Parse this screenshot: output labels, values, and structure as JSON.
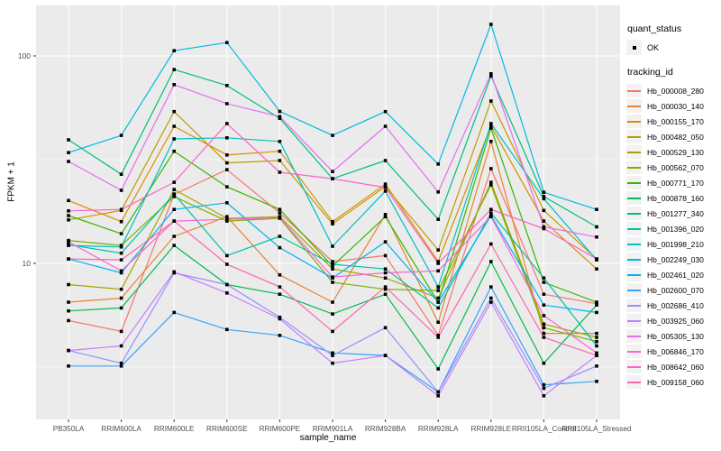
{
  "chart_data": {
    "type": "line",
    "title": "",
    "xlabel": "sample_name",
    "ylabel": "FPKM + 1",
    "y_scale": "log10",
    "y_ticks": [
      10,
      100
    ],
    "y_minor_ticks": [
      3.162,
      31.623
    ],
    "ylim_approx": [
      1.9,
      170
    ],
    "grid": "on",
    "legend_position": "right",
    "point_shape": "filled-square",
    "point_color": "#000000",
    "panel_bg": "#EBEBEB",
    "grid_color": "#FFFFFF",
    "tick_label_color": "#4D4D4D",
    "categories": [
      "PB350LA",
      "RRIM600LA",
      "RRIM600LE",
      "RRIM600SE",
      "RRIM600PE",
      "RRIM901LA",
      "RRIM928BA",
      "RRIM928LA",
      "RRIM928LE",
      "RRII105LA_Control",
      "RRII105LA_Stressed"
    ],
    "series": [
      {
        "name": "Hb_000008_280",
        "color": "#F8766D",
        "values": [
          5.3,
          4.7,
          21.5,
          28.3,
          17.5,
          10.2,
          10.9,
          4.5,
          28.6,
          7.1,
          6.4
        ]
      },
      {
        "name": "Hb_000030_140",
        "color": "#EA8331",
        "values": [
          6.5,
          6.8,
          13.5,
          16.8,
          8.8,
          6.5,
          17.2,
          5.2,
          38.7,
          4.6,
          4.6
        ]
      },
      {
        "name": "Hb_000155_170",
        "color": "#D89000",
        "values": [
          20.1,
          15.9,
          45.8,
          33.3,
          34.7,
          15.9,
          24.1,
          10.2,
          46,
          16,
          9.4
        ]
      },
      {
        "name": "Hb_000482_050",
        "color": "#C09B00",
        "values": [
          16.2,
          18,
          53.9,
          30.5,
          31.3,
          15.5,
          23.5,
          11.6,
          60.6,
          18,
          10.5
        ]
      },
      {
        "name": "Hb_000529_130",
        "color": "#A3A500",
        "values": [
          7.9,
          7.5,
          22.7,
          16.5,
          16.8,
          9.4,
          8.5,
          6.8,
          24.6,
          5.1,
          4.4
        ]
      },
      {
        "name": "Hb_000562_070",
        "color": "#7CAE00",
        "values": [
          12.9,
          12.2,
          21,
          16,
          16.5,
          8.1,
          7.5,
          7.4,
          23.9,
          4.9,
          4.2
        ]
      },
      {
        "name": "Hb_000771_170",
        "color": "#39B600",
        "values": [
          17,
          13.9,
          34.7,
          23.4,
          18.2,
          9.7,
          16.8,
          6.5,
          44.9,
          8.1,
          6.5
        ]
      },
      {
        "name": "Hb_000878_160",
        "color": "#00BB4E",
        "values": [
          5.9,
          6.1,
          12.2,
          7.9,
          7.1,
          5.7,
          7.1,
          3.1,
          10.2,
          3.3,
          6.3
        ]
      },
      {
        "name": "Hb_001277_340",
        "color": "#00BF7D",
        "values": [
          39.4,
          26.9,
          86,
          72,
          50,
          25.6,
          31.3,
          16.3,
          80,
          21,
          15
        ]
      },
      {
        "name": "Hb_001396_020",
        "color": "#00C1A3",
        "values": [
          12.3,
          11.2,
          21.6,
          10.9,
          13.5,
          9.9,
          9.4,
          6.1,
          17.5,
          8.5,
          4
        ]
      },
      {
        "name": "Hb_001998_210",
        "color": "#00BFC4",
        "values": [
          12.2,
          12,
          39.8,
          40.3,
          38.7,
          12.1,
          22.3,
          7.7,
          47.2,
          20.5,
          10.4
        ]
      },
      {
        "name": "Hb_002249_030",
        "color": "#00BAE0",
        "values": [
          34.2,
          41.4,
          106,
          116,
          54,
          41.4,
          53.9,
          30.1,
          142,
          22,
          18.2
        ]
      },
      {
        "name": "Hb_002461_020",
        "color": "#00B0F6",
        "values": [
          10.5,
          9,
          18.2,
          19.6,
          11.9,
          8.5,
          12.7,
          6.5,
          17,
          6.3,
          5.8
        ]
      },
      {
        "name": "Hb_002600_070",
        "color": "#35A2FF",
        "values": [
          3.2,
          3.2,
          5.8,
          4.8,
          4.5,
          3.7,
          3.6,
          2.4,
          7.7,
          2.6,
          2.7
        ]
      },
      {
        "name": "Hb_002686_410",
        "color": "#9590FF",
        "values": [
          3.8,
          3.3,
          9,
          7.9,
          5.5,
          3.6,
          4.9,
          2.4,
          6.8,
          2.5,
          3.2
        ]
      },
      {
        "name": "Hb_003925_060",
        "color": "#C77CFF",
        "values": [
          3.8,
          4,
          9.1,
          7.2,
          5.4,
          3.3,
          3.6,
          2.3,
          6.5,
          2.3,
          3.6
        ]
      },
      {
        "name": "Hb_005305_130",
        "color": "#E76BF3",
        "values": [
          31,
          22.5,
          72.7,
          58.9,
          51,
          27.7,
          45.8,
          22.1,
          82,
          15,
          13.4
        ]
      },
      {
        "name": "Hb_006846_170",
        "color": "#FA62DB",
        "values": [
          12.7,
          9.2,
          16,
          16.3,
          16.6,
          8.6,
          9,
          9.2,
          16.8,
          5.6,
          3.7
        ]
      },
      {
        "name": "Hb_008642_060",
        "color": "#FF61C9",
        "values": [
          17.9,
          18.2,
          24.6,
          47.2,
          27.5,
          25.6,
          23.2,
          10,
          18.2,
          14.7,
          10.5
        ]
      },
      {
        "name": "Hb_009158_060",
        "color": "#FF65AE",
        "values": [
          10.5,
          10.4,
          16,
          9.9,
          7.7,
          4.7,
          7.7,
          4.4,
          12.4,
          4.4,
          3.6
        ]
      }
    ]
  },
  "legend": {
    "quant_status_title": "quant_status",
    "quant_status_items": [
      {
        "label": "OK"
      }
    ],
    "tracking_title": "tracking_id"
  }
}
